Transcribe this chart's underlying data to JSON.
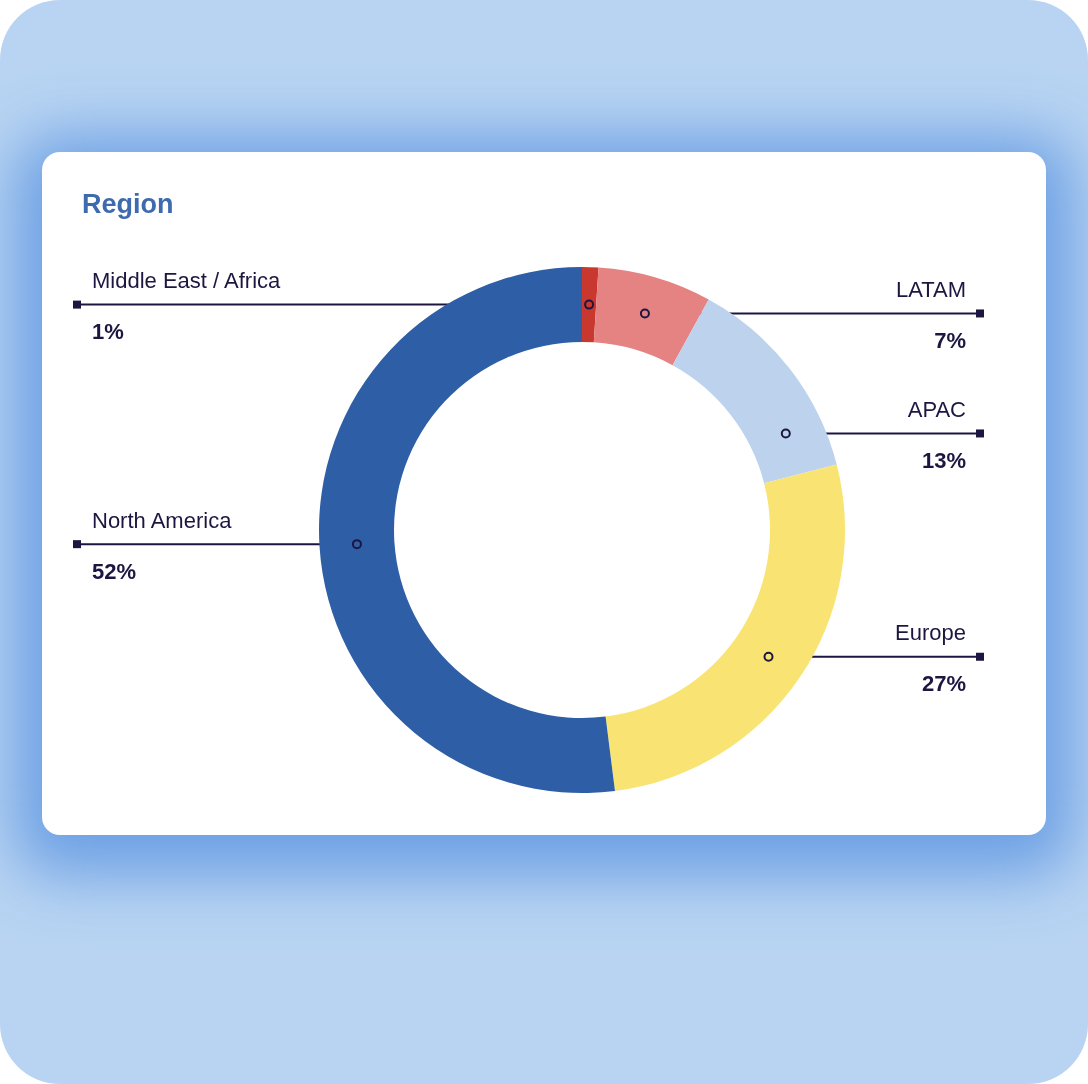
{
  "chart_data": {
    "type": "donut",
    "title": "Region",
    "categories": [
      "Middle East / Africa",
      "LATAM",
      "APAC",
      "Europe",
      "North America"
    ],
    "values": [
      1,
      7,
      13,
      27,
      52
    ],
    "value_labels": [
      "1%",
      "7%",
      "13%",
      "27%",
      "52%"
    ],
    "colors": [
      "#c8382f",
      "#e58383",
      "#bdd3ed",
      "#f9e473",
      "#2e5ea6"
    ]
  }
}
